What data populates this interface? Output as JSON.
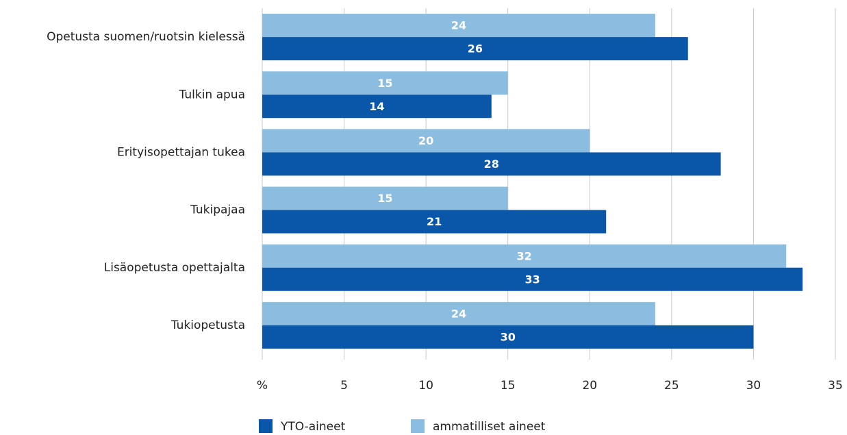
{
  "chart_data": {
    "type": "hbar",
    "categories": [
      "Opetusta suomen/ruotsin kielessä",
      "Tulkin apua",
      "Erityisopettajan tukea",
      "Tukipajaa",
      "Lisäopetusta opettajalta",
      "Tukiopetusta"
    ],
    "series": [
      {
        "name": "YTO-aineet",
        "color": "#0a56a8",
        "values": [
          26,
          14,
          28,
          21,
          33,
          30
        ]
      },
      {
        "name": "ammatilliset aineet",
        "color": "#8bbde0",
        "values": [
          24,
          15,
          20,
          15,
          32,
          24
        ]
      }
    ],
    "xlim": [
      0,
      35
    ],
    "xticks": [
      {
        "value": 0,
        "label": "%"
      },
      5,
      10,
      15,
      20,
      25,
      30,
      35
    ],
    "grid": true
  }
}
